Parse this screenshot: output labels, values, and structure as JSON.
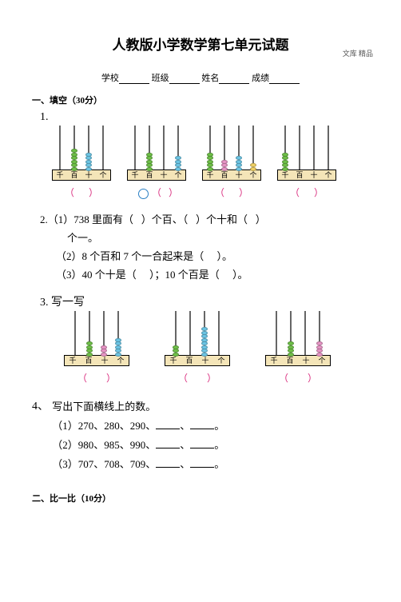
{
  "watermark": "文库 精品",
  "title": "人教版小学数学第七单元试题",
  "info": {
    "school": "学校",
    "class": "班级",
    "name": "姓名",
    "score": "成绩"
  },
  "section1": "一、填空（30分）",
  "q1_num": "1.",
  "base_labels": [
    "千",
    "百",
    "十",
    "个"
  ],
  "q1_abacus": [
    {
      "rods": [
        {
          "n": 0
        },
        {
          "n": 6,
          "c": "#6fc148"
        },
        {
          "n": 5,
          "c": "#6cc6e6"
        },
        {
          "n": 0
        }
      ]
    },
    {
      "rods": [
        {
          "n": 0
        },
        {
          "n": 5,
          "c": "#6fc148"
        },
        {
          "n": 0
        },
        {
          "n": 4,
          "c": "#6cc6e6"
        }
      ]
    },
    {
      "rods": [
        {
          "n": 5,
          "c": "#6fc148"
        },
        {
          "n": 3,
          "c": "#e895c6"
        },
        {
          "n": 4,
          "c": "#6cc6e6"
        },
        {
          "n": 2,
          "c": "#f2d264"
        }
      ]
    },
    {
      "rods": [
        {
          "n": 5,
          "c": "#6fc148"
        },
        {
          "n": 0
        },
        {
          "n": 0
        },
        {
          "n": 0
        }
      ]
    }
  ],
  "q2": {
    "num": "2.",
    "l1a": "（1）738 里面有（",
    "l1b": "）个百、（",
    "l1c": "）个十和（",
    "l1d": "）",
    "l1e": "个一。",
    "l2a": "（2）8 个百和 7 个一合起来是（",
    "l2b": "）。",
    "l3a": "（3）40 个十是（",
    "l3b": "）；10 个百是（",
    "l3c": "）。"
  },
  "q3": {
    "num": "3.",
    "title": "写一写",
    "abacus": [
      {
        "rods": [
          {
            "n": 0
          },
          {
            "n": 4,
            "c": "#6fc148"
          },
          {
            "n": 3,
            "c": "#e895c6"
          },
          {
            "n": 5,
            "c": "#6cc6e6"
          }
        ]
      },
      {
        "rods": [
          {
            "n": 3,
            "c": "#6fc148"
          },
          {
            "n": 0
          },
          {
            "n": 8,
            "c": "#6cc6e6"
          },
          {
            "n": 0
          }
        ]
      },
      {
        "rods": [
          {
            "n": 0
          },
          {
            "n": 4,
            "c": "#6fc148"
          },
          {
            "n": 0
          },
          {
            "n": 4,
            "c": "#e895c6"
          }
        ]
      }
    ]
  },
  "q4": {
    "num": "4、",
    "title": "写出下面横线上的数。",
    "lines": [
      "（1）270、280、290、",
      "（2）980、985、990、",
      "（3）707、708、709、"
    ]
  },
  "section2": "二、比一比（10分）"
}
